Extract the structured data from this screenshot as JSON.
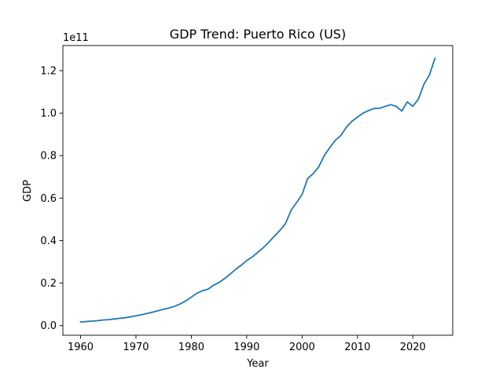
{
  "chart_data": {
    "type": "line",
    "title": "GDP Trend: Puerto Rico (US)",
    "xlabel": "Year",
    "ylabel": "GDP",
    "y_offset_label": "1e11",
    "y_scale_factor": 100000000000,
    "xlim": [
      1956.8,
      2027.2
    ],
    "ylim": [
      -0.0455,
      1.3183
    ],
    "x_ticks": [
      1960,
      1970,
      1980,
      1990,
      2000,
      2010,
      2020
    ],
    "y_ticks": [
      0.0,
      0.2,
      0.4,
      0.6,
      0.8,
      1.0,
      1.2
    ],
    "y_tick_labels": [
      "0.0",
      "0.2",
      "0.4",
      "0.6",
      "0.8",
      "1.0",
      "1.2"
    ],
    "grid": false,
    "line_color": "#1f77b4",
    "series": [
      {
        "x": [
          1960,
          1961,
          1962,
          1963,
          1964,
          1965,
          1966,
          1967,
          1968,
          1969,
          1970,
          1971,
          1972,
          1973,
          1974,
          1975,
          1976,
          1977,
          1978,
          1979,
          1980,
          1981,
          1982,
          1983,
          1984,
          1985,
          1986,
          1987,
          1988,
          1989,
          1990,
          1991,
          1992,
          1993,
          1994,
          1995,
          1996,
          1997,
          1998,
          1999,
          2000,
          2001,
          2002,
          2003,
          2004,
          2005,
          2006,
          2007,
          2008,
          2009,
          2010,
          2011,
          2012,
          2013,
          2014,
          2015,
          2016,
          2017,
          2018,
          2019,
          2020,
          2021,
          2022,
          2023,
          2024
        ],
        "values": [
          0.017,
          0.019,
          0.021,
          0.023,
          0.026,
          0.028,
          0.031,
          0.034,
          0.037,
          0.041,
          0.046,
          0.051,
          0.057,
          0.063,
          0.07,
          0.077,
          0.083,
          0.091,
          0.102,
          0.116,
          0.134,
          0.152,
          0.164,
          0.171,
          0.19,
          0.203,
          0.221,
          0.242,
          0.265,
          0.284,
          0.306,
          0.323,
          0.345,
          0.367,
          0.393,
          0.421,
          0.448,
          0.48,
          0.542,
          0.579,
          0.617,
          0.692,
          0.715,
          0.747,
          0.8,
          0.838,
          0.872,
          0.895,
          0.934,
          0.962,
          0.981,
          1.0,
          1.012,
          1.022,
          1.023,
          1.032,
          1.04,
          1.032,
          1.01,
          1.053,
          1.032,
          1.066,
          1.136,
          1.18,
          1.258
        ]
      }
    ]
  }
}
